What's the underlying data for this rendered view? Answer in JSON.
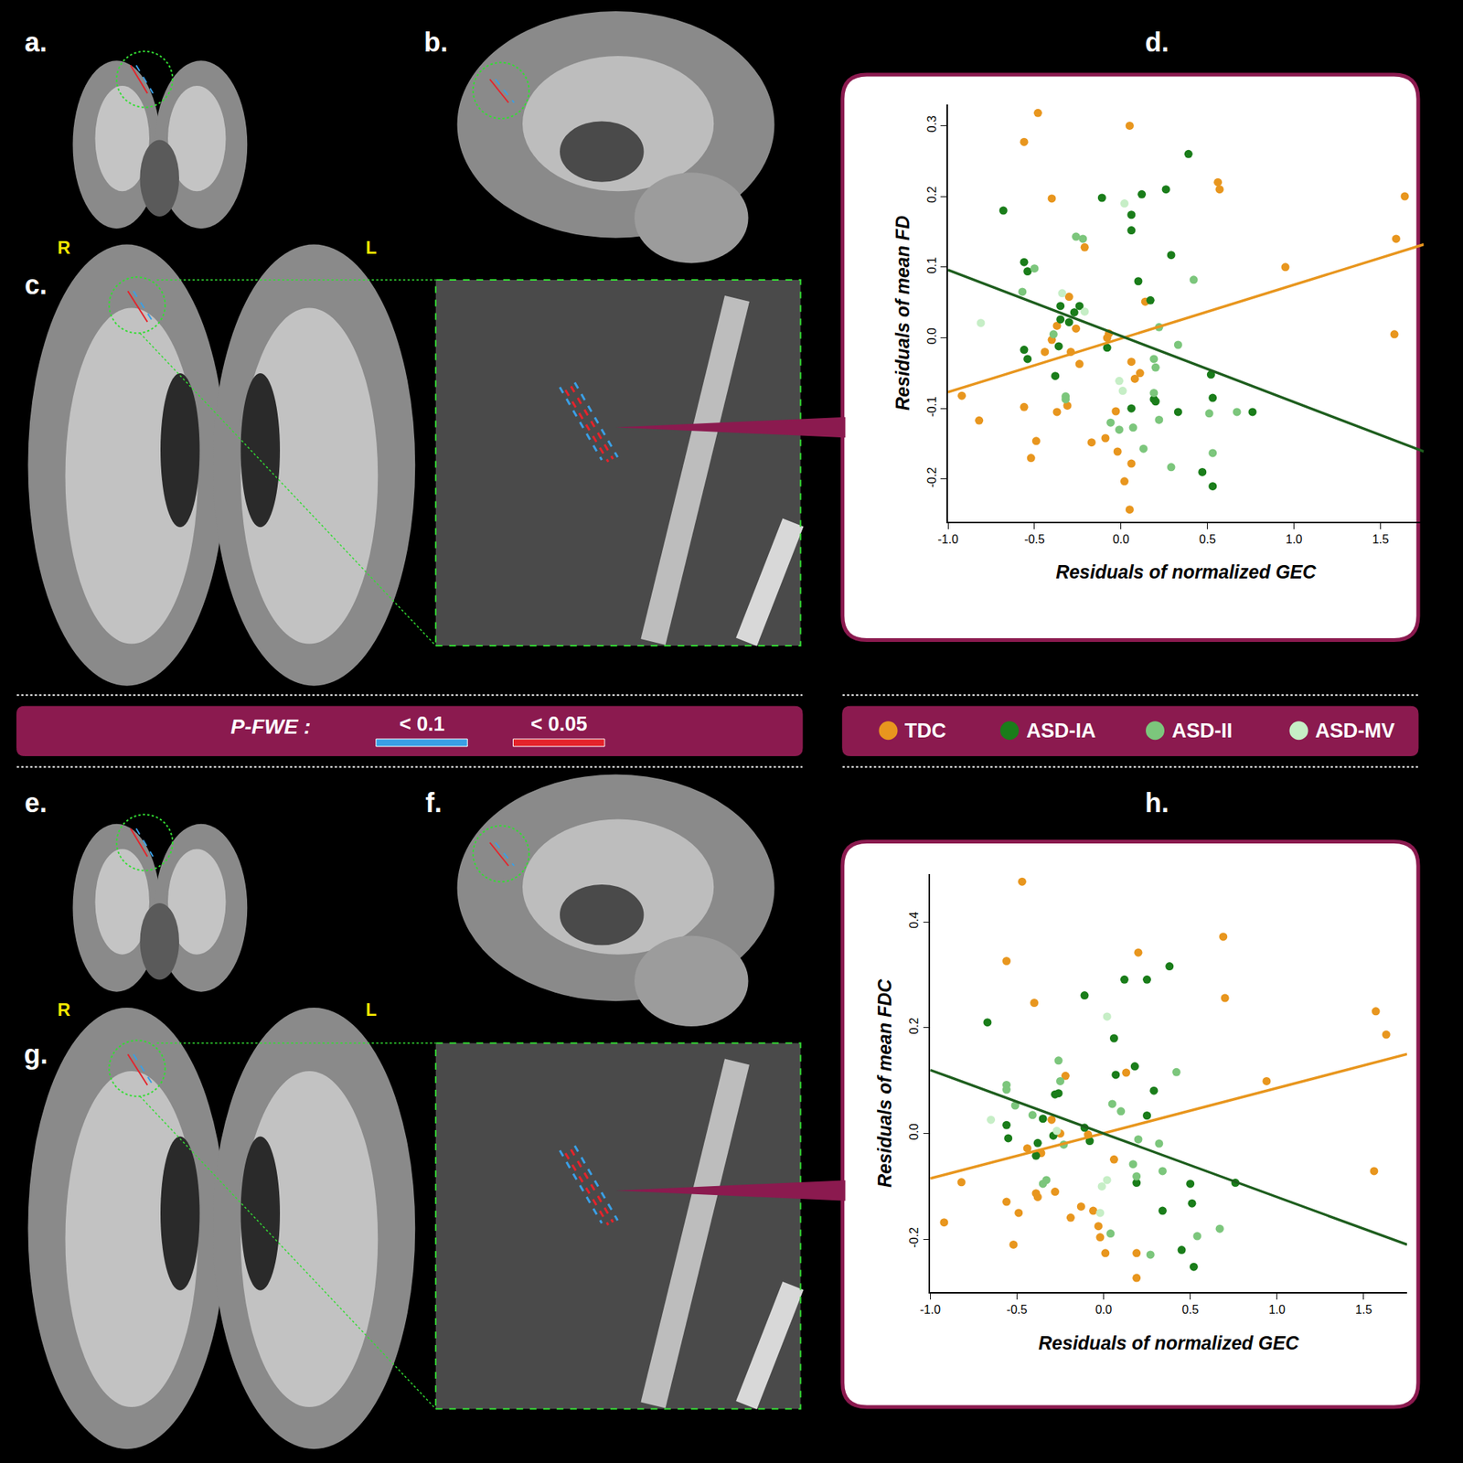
{
  "chart_data": [
    {
      "type": "scatter",
      "x_label": "Residuals of normalized GEC",
      "y_label": "Residuals of mean FD",
      "xlim": [
        -1.0,
        1.75
      ],
      "ylim": [
        -0.26,
        0.33
      ],
      "xticks": [
        {
          "value": -1.0,
          "label": "-1.0"
        },
        -0.5,
        {
          "value": 0.0,
          "label": "0.0"
        },
        0.5,
        {
          "value": 1.0,
          "label": "1.0"
        },
        1.5
      ],
      "yticks": [
        -0.2,
        -0.1,
        {
          "value": 0.0,
          "label": "0.0"
        },
        0.1,
        0.2,
        0.3
      ],
      "grid": false,
      "series": [
        {
          "name": "TDC",
          "color": "#e8961e",
          "marker": "circle",
          "x": [
            -0.92,
            -0.82,
            -0.48,
            -0.56,
            -0.4,
            0.05,
            0.56,
            0.57,
            0.95,
            1.64,
            1.59,
            1.58,
            -0.44,
            -0.37,
            -0.3,
            -0.29,
            -0.37,
            -0.31,
            -0.56,
            -0.49,
            -0.52,
            -0.26,
            -0.24,
            -0.17,
            -0.09,
            -0.07,
            -0.03,
            -0.02,
            0.02,
            0.06,
            0.08,
            0.11,
            0.14,
            0.06,
            0.05,
            -0.08,
            -0.4,
            -0.21
          ],
          "values": [
            -0.082,
            -0.117,
            0.318,
            0.277,
            0.197,
            0.3,
            0.22,
            0.21,
            0.1,
            0.2,
            0.14,
            0.005,
            -0.02,
            0.017,
            0.058,
            -0.02,
            -0.105,
            -0.096,
            -0.098,
            -0.146,
            -0.17,
            0.013,
            -0.037,
            -0.148,
            -0.142,
            0.006,
            -0.104,
            -0.161,
            -0.203,
            -0.034,
            -0.058,
            -0.05,
            0.051,
            -0.178,
            -0.243,
            0.0,
            -0.003,
            0.128
          ]
        },
        {
          "name": "ASD-IA",
          "color": "#1a7d1a",
          "marker": "circle",
          "x": [
            -0.68,
            -0.56,
            -0.54,
            -0.56,
            -0.54,
            -0.38,
            -0.35,
            -0.35,
            -0.27,
            -0.3,
            -0.24,
            -0.36,
            -0.11,
            -0.08,
            0.06,
            0.06,
            0.1,
            0.12,
            0.17,
            0.06,
            0.19,
            0.2,
            0.26,
            0.29,
            0.33,
            0.39,
            0.52,
            0.53,
            0.47,
            0.53,
            0.76
          ],
          "values": [
            0.18,
            0.107,
            0.094,
            -0.017,
            -0.03,
            -0.054,
            0.045,
            0.026,
            0.036,
            0.022,
            0.045,
            -0.012,
            0.198,
            -0.014,
            0.174,
            0.152,
            0.08,
            0.203,
            0.053,
            -0.1,
            -0.087,
            -0.09,
            0.21,
            0.117,
            -0.105,
            0.26,
            -0.052,
            -0.085,
            -0.19,
            -0.21,
            -0.105
          ]
        },
        {
          "name": "ASD-II",
          "color": "#7cc67c",
          "marker": "circle",
          "x": [
            -0.57,
            -0.5,
            -0.26,
            -0.32,
            -0.32,
            -0.39,
            -0.22,
            -0.01,
            -0.06,
            0.07,
            0.13,
            0.19,
            0.2,
            0.22,
            0.19,
            0.29,
            0.33,
            0.42,
            0.51,
            0.53,
            0.67,
            0.22
          ],
          "values": [
            0.065,
            0.098,
            0.143,
            -0.083,
            -0.087,
            0.005,
            0.14,
            -0.13,
            -0.12,
            -0.127,
            -0.157,
            -0.03,
            -0.042,
            0.015,
            -0.078,
            -0.183,
            -0.01,
            0.082,
            -0.107,
            -0.163,
            -0.105,
            -0.116
          ]
        },
        {
          "name": "ASD-MV",
          "color": "#c6eec6",
          "marker": "circle",
          "x": [
            -0.81,
            -0.34,
            0.02,
            -0.01,
            0.01,
            -0.21
          ],
          "values": [
            0.021,
            0.063,
            0.19,
            -0.061,
            -0.075,
            0.037
          ]
        },
        {
          "type": "line",
          "color": "#e8961e",
          "line_style": "solid",
          "x": [
            -1.0,
            1.75
          ],
          "values": [
            -0.077,
            0.132
          ]
        },
        {
          "type": "line",
          "color": "#1e5e1e",
          "line_style": "solid",
          "x": [
            -1.0,
            1.75
          ],
          "values": [
            0.096,
            -0.161
          ]
        }
      ]
    },
    {
      "type": "scatter",
      "x_label": "Residuals of normalized GEC",
      "y_label": "Residuals of mean FDC",
      "xlim": [
        -1.0,
        1.75
      ],
      "ylim": [
        -0.3,
        0.49
      ],
      "xticks": [
        {
          "value": -1.0,
          "label": "-1.0"
        },
        -0.5,
        {
          "value": 0.0,
          "label": "0.0"
        },
        0.5,
        {
          "value": 1.0,
          "label": "1.0"
        },
        1.5
      ],
      "yticks": [
        -0.2,
        {
          "value": 0.0,
          "label": "0.0"
        },
        0.2,
        0.4
      ],
      "grid": false,
      "series": [
        {
          "name": "TDC",
          "color": "#e8961e",
          "marker": "circle",
          "x": [
            -0.92,
            -0.82,
            -0.47,
            -0.56,
            -0.4,
            -0.56,
            -0.49,
            -0.52,
            -0.44,
            -0.38,
            -0.36,
            -0.3,
            -0.28,
            -0.25,
            -0.22,
            -0.19,
            -0.13,
            -0.09,
            -0.06,
            -0.03,
            0.01,
            0.06,
            0.13,
            0.2,
            0.19,
            0.19,
            -0.02,
            0.69,
            0.7,
            0.94,
            1.57,
            1.63,
            1.56,
            -0.39
          ],
          "values": [
            -0.168,
            -0.092,
            0.476,
            0.326,
            0.247,
            -0.129,
            -0.15,
            -0.21,
            -0.028,
            -0.12,
            -0.037,
            0.026,
            -0.11,
            0.0,
            0.109,
            -0.159,
            -0.138,
            -0.002,
            -0.146,
            -0.175,
            -0.226,
            -0.049,
            0.115,
            0.342,
            -0.226,
            -0.273,
            -0.196,
            0.372,
            0.256,
            0.099,
            0.231,
            0.187,
            -0.071,
            -0.113
          ]
        },
        {
          "name": "ASD-IA",
          "color": "#1a7d1a",
          "marker": "circle",
          "x": [
            -0.67,
            -0.56,
            -0.55,
            -0.39,
            -0.35,
            -0.26,
            -0.28,
            -0.29,
            -0.38,
            -0.11,
            -0.08,
            -0.11,
            0.06,
            0.07,
            0.12,
            0.18,
            0.25,
            0.29,
            0.38,
            0.25,
            0.34,
            0.19,
            0.5,
            0.45,
            0.52,
            0.51,
            0.76
          ],
          "values": [
            0.21,
            0.016,
            -0.009,
            -0.042,
            0.028,
            0.076,
            0.074,
            -0.004,
            -0.018,
            0.261,
            -0.014,
            0.011,
            0.18,
            0.111,
            0.291,
            0.127,
            0.291,
            0.081,
            0.316,
            0.034,
            -0.146,
            -0.093,
            -0.095,
            -0.22,
            -0.252,
            -0.132,
            -0.093
          ]
        },
        {
          "name": "ASD-II",
          "color": "#7cc67c",
          "marker": "circle",
          "x": [
            -0.56,
            -0.56,
            -0.51,
            -0.41,
            -0.26,
            -0.25,
            -0.35,
            -0.33,
            -0.23,
            0.05,
            0.1,
            0.19,
            0.2,
            0.27,
            0.32,
            0.34,
            0.42,
            0.54,
            0.67,
            0.17,
            0.04
          ],
          "values": [
            0.092,
            0.083,
            0.053,
            0.035,
            0.138,
            0.099,
            -0.095,
            -0.088,
            -0.021,
            0.056,
            0.042,
            -0.081,
            -0.011,
            -0.229,
            -0.019,
            -0.071,
            0.116,
            -0.194,
            -0.18,
            -0.058,
            -0.189
          ]
        },
        {
          "name": "ASD-MV",
          "color": "#c6eec6",
          "marker": "circle",
          "x": [
            -0.65,
            0.02,
            0.02,
            -0.01,
            -0.27,
            -0.02
          ],
          "values": [
            0.026,
            0.221,
            -0.088,
            -0.1,
            0.005,
            -0.15
          ]
        },
        {
          "type": "line",
          "color": "#e8961e",
          "line_style": "solid",
          "x": [
            -1.0,
            1.75
          ],
          "values": [
            -0.085,
            0.15
          ]
        },
        {
          "type": "line",
          "color": "#1e5e1e",
          "line_style": "solid",
          "x": [
            -1.0,
            1.75
          ],
          "values": [
            0.12,
            -0.21
          ]
        }
      ]
    }
  ],
  "panel_labels": [
    "a.",
    "b.",
    "c.",
    "d.",
    "e.",
    "f.",
    "g.",
    "h."
  ],
  "hemisphere_labels": [
    "R",
    "L"
  ],
  "pfwe_legend": {
    "title": "P-FWE :",
    "entries": [
      {
        "label": "< 0.1",
        "color": "#3a9fe6"
      },
      {
        "label": "< 0.05",
        "color": "#e5232b"
      }
    ]
  }
}
